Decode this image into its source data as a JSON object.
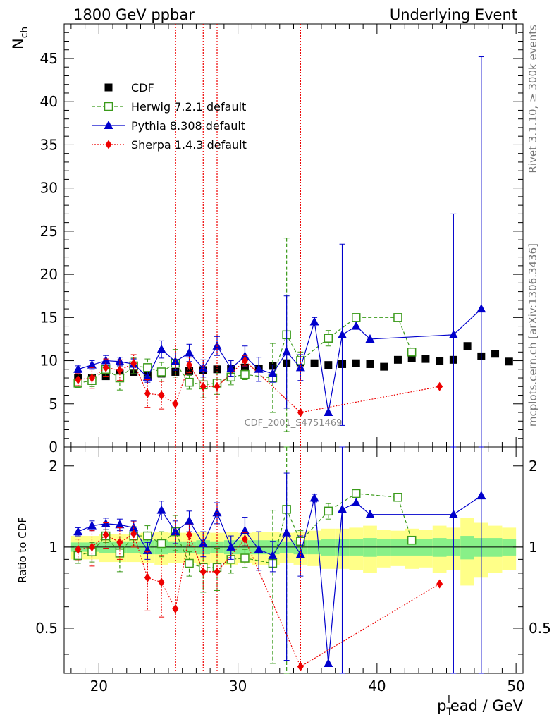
{
  "header": {
    "left": "1800 GeV ppbar",
    "right": "Underlying Event"
  },
  "side_labels": {
    "rivet": "Rivet 3.1.10, ≥ 300k events",
    "mcplots": "mcplots.cern.ch [arXiv:1306.3436]"
  },
  "analysis_id": "CDF_2001_S4751469",
  "colors": {
    "cdf": "#000000",
    "herwig": "#3a9a1a",
    "pythia": "#0000cc",
    "sherpa": "#ee0000",
    "band_inner": "#88f088",
    "band_outer": "#ffff88"
  },
  "chart_data": [
    {
      "type": "scatter",
      "panel": "main",
      "ylabel_main": "N",
      "ylabel_sub": "ch",
      "xlim": [
        17.5,
        50.5
      ],
      "ylim": [
        0,
        49
      ],
      "yticks": [
        0,
        5,
        10,
        15,
        20,
        25,
        30,
        35,
        40,
        45
      ],
      "legend_position": "top-left",
      "series": [
        {
          "name": "CDF",
          "style": "square-filled",
          "x": [
            18.5,
            19.5,
            20.5,
            21.5,
            22.5,
            23.5,
            24.5,
            25.5,
            26.5,
            27.5,
            28.5,
            29.5,
            30.5,
            31.5,
            32.5,
            33.5,
            34.5,
            35.5,
            36.5,
            37.5,
            38.5,
            39.5,
            40.5,
            41.5,
            42.5,
            43.5,
            44.5,
            45.5,
            46.5,
            47.5,
            48.5,
            49.5
          ],
          "y": [
            8.0,
            8.0,
            8.2,
            8.5,
            8.7,
            8.3,
            8.5,
            8.7,
            8.8,
            8.9,
            9.0,
            9.1,
            9.2,
            9.1,
            9.4,
            9.7,
            9.8,
            9.7,
            9.5,
            9.6,
            9.7,
            9.6,
            9.3,
            10.1,
            10.3,
            10.2,
            10.0,
            10.1,
            11.7,
            10.5,
            10.8,
            9.9
          ]
        },
        {
          "name": "Herwig 7.2.1 default",
          "style": "square-open-dashed",
          "x": [
            18.5,
            19.5,
            20.5,
            21.5,
            22.5,
            23.5,
            24.5,
            25.5,
            26.5,
            27.5,
            28.5,
            29.5,
            30.5,
            32.5,
            33.5,
            34.5,
            36.5,
            38.5,
            41.5,
            42.5
          ],
          "y": [
            7.4,
            7.7,
            9.0,
            8.0,
            9.4,
            9.2,
            8.7,
            9.7,
            7.5,
            7.2,
            7.4,
            8.1,
            8.4,
            8.0,
            13.0,
            10.0,
            12.6,
            15.0,
            15.0,
            11.0
          ],
          "err": [
            0.5,
            0.7,
            0.8,
            1.4,
            0.9,
            1.0,
            1.1,
            1.6,
            0.8,
            1.5,
            1.3,
            0.9,
            0.6,
            4.0,
            11.2,
            1.0,
            0.9,
            0,
            0,
            0
          ]
        },
        {
          "name": "Pythia 8.308 default",
          "style": "triangle-filled-solid",
          "x": [
            18.5,
            19.5,
            20.5,
            21.5,
            22.5,
            23.5,
            24.5,
            25.5,
            26.5,
            27.5,
            28.5,
            29.5,
            30.5,
            31.5,
            32.5,
            33.5,
            34.5,
            35.5,
            36.5,
            37.5,
            38.5,
            39.5,
            45.5,
            47.5
          ],
          "y": [
            9.0,
            9.5,
            10.0,
            9.9,
            9.6,
            8.1,
            11.3,
            9.9,
            10.9,
            9.1,
            11.7,
            9.1,
            10.5,
            9.0,
            8.5,
            11.0,
            9.2,
            14.5,
            4.0,
            13.0,
            14.0,
            12.5,
            13.0,
            16.0
          ],
          "err": [
            0.4,
            0.5,
            0.6,
            0.5,
            0.6,
            0.6,
            1.0,
            1.0,
            1.0,
            1.0,
            1.1,
            0.9,
            1.2,
            1.4,
            1.0,
            6.5,
            1.5,
            0.5,
            0,
            10.5,
            0,
            0,
            14.0,
            29.2
          ]
        },
        {
          "name": "Sherpa 1.4.3 default",
          "style": "diamond-filled-dotted",
          "x": [
            18.5,
            19.5,
            20.5,
            21.5,
            22.5,
            23.5,
            24.5,
            25.5,
            26.5,
            27.5,
            28.5,
            30.5,
            34.5,
            44.5
          ],
          "y": [
            7.8,
            8.0,
            9.2,
            8.9,
            9.7,
            6.2,
            6.0,
            5.0,
            9.5,
            7.0,
            7.0,
            10.0,
            4.0,
            7.0
          ],
          "err": [
            0.7,
            1.2,
            1.0,
            1.2,
            1.0,
            1.6,
            1.6,
            0,
            0.9,
            0,
            0,
            0.6,
            0,
            0
          ],
          "full_span_err_x": [
            25.5,
            27.5,
            28.5,
            34.5
          ]
        }
      ]
    },
    {
      "type": "scatter",
      "panel": "ratio",
      "ylabel": "Ratio to CDF",
      "xlabel_main": "p",
      "xlabel_sub": "T",
      "xlabel_sup": "l",
      "xlabel_rest": "ead / GeV",
      "xlim": [
        17.5,
        50.5
      ],
      "ylim": [
        0.34,
        2.35
      ],
      "log_y": true,
      "yticks": [
        0.5,
        1,
        2
      ],
      "xticks": [
        20,
        30,
        40,
        50
      ],
      "band": {
        "x": [
          18.5,
          19.5,
          20.5,
          21.5,
          22.5,
          23.5,
          24.5,
          25.5,
          26.5,
          27.5,
          28.5,
          29.5,
          30.5,
          31.5,
          32.5,
          33.5,
          34.5,
          35.5,
          36.5,
          37.5,
          38.5,
          39.5,
          40.5,
          41.5,
          42.5,
          43.5,
          44.5,
          45.5,
          46.5,
          47.5,
          48.5,
          49.5
        ],
        "inner": [
          0.04,
          0.04,
          0.05,
          0.05,
          0.05,
          0.06,
          0.06,
          0.05,
          0.05,
          0.06,
          0.05,
          0.06,
          0.06,
          0.06,
          0.06,
          0.05,
          0.06,
          0.06,
          0.07,
          0.07,
          0.07,
          0.08,
          0.07,
          0.07,
          0.07,
          0.07,
          0.08,
          0.07,
          0.1,
          0.08,
          0.08,
          0.07
        ],
        "outer": [
          0.1,
          0.1,
          0.12,
          0.12,
          0.12,
          0.13,
          0.14,
          0.13,
          0.13,
          0.14,
          0.13,
          0.14,
          0.13,
          0.14,
          0.14,
          0.13,
          0.14,
          0.15,
          0.17,
          0.17,
          0.18,
          0.2,
          0.16,
          0.15,
          0.17,
          0.16,
          0.2,
          0.18,
          0.28,
          0.23,
          0.2,
          0.18
        ]
      },
      "series": [
        {
          "name": "Herwig 7.2.1 default",
          "x": [
            18.5,
            19.5,
            20.5,
            21.5,
            22.5,
            23.5,
            24.5,
            25.5,
            26.5,
            27.5,
            28.5,
            29.5,
            30.5,
            32.5,
            33.5,
            34.5,
            36.5,
            38.5,
            41.5,
            42.5
          ],
          "y": [
            0.93,
            0.96,
            1.1,
            0.95,
            1.1,
            1.1,
            1.03,
            1.14,
            0.87,
            0.84,
            0.84,
            0.9,
            0.91,
            0.87,
            1.38,
            1.05,
            1.36,
            1.58,
            1.53,
            1.06
          ],
          "err": [
            0.06,
            0.08,
            0.06,
            0.14,
            0.09,
            0.1,
            0.11,
            0.17,
            0.09,
            0.16,
            0.15,
            0.1,
            0.07,
            0.5,
            1.2,
            0.1,
            0.09,
            0,
            0,
            0
          ]
        },
        {
          "name": "Pythia 8.308 default",
          "x": [
            18.5,
            19.5,
            20.5,
            21.5,
            22.5,
            23.5,
            24.5,
            25.5,
            26.5,
            27.5,
            28.5,
            29.5,
            30.5,
            31.5,
            32.5,
            33.5,
            34.5,
            35.5,
            36.5,
            37.5,
            38.5,
            39.5,
            45.5,
            47.5
          ],
          "y": [
            1.14,
            1.2,
            1.22,
            1.21,
            1.18,
            0.97,
            1.37,
            1.14,
            1.25,
            1.03,
            1.34,
            1.0,
            1.15,
            0.98,
            0.93,
            1.13,
            0.94,
            1.52,
            0.37,
            1.38,
            1.46,
            1.32,
            1.32,
            1.55
          ],
          "err": [
            0.04,
            0.05,
            0.06,
            0.06,
            0.07,
            0.07,
            0.11,
            0.11,
            0.11,
            0.11,
            0.12,
            0.1,
            0.14,
            0.16,
            0.12,
            0.75,
            0.16,
            0.05,
            0,
            1.2,
            0,
            0,
            1.4,
            2.9
          ]
        },
        {
          "name": "Sherpa 1.4.3 default",
          "x": [
            18.5,
            19.5,
            20.5,
            21.5,
            22.5,
            23.5,
            24.5,
            25.5,
            26.5,
            27.5,
            28.5,
            30.5,
            34.5,
            44.5
          ],
          "y": [
            0.98,
            1.0,
            1.11,
            1.04,
            1.12,
            0.77,
            0.74,
            0.59,
            1.11,
            0.81,
            0.81,
            1.07,
            0.36,
            0.73
          ],
          "err": [
            0.09,
            0.15,
            0.12,
            0.14,
            0.12,
            0.19,
            0.19,
            0,
            0.1,
            0,
            0,
            0.06,
            0,
            0
          ],
          "full_span_err_x": [
            25.5,
            27.5,
            28.5,
            34.5
          ]
        }
      ]
    }
  ]
}
